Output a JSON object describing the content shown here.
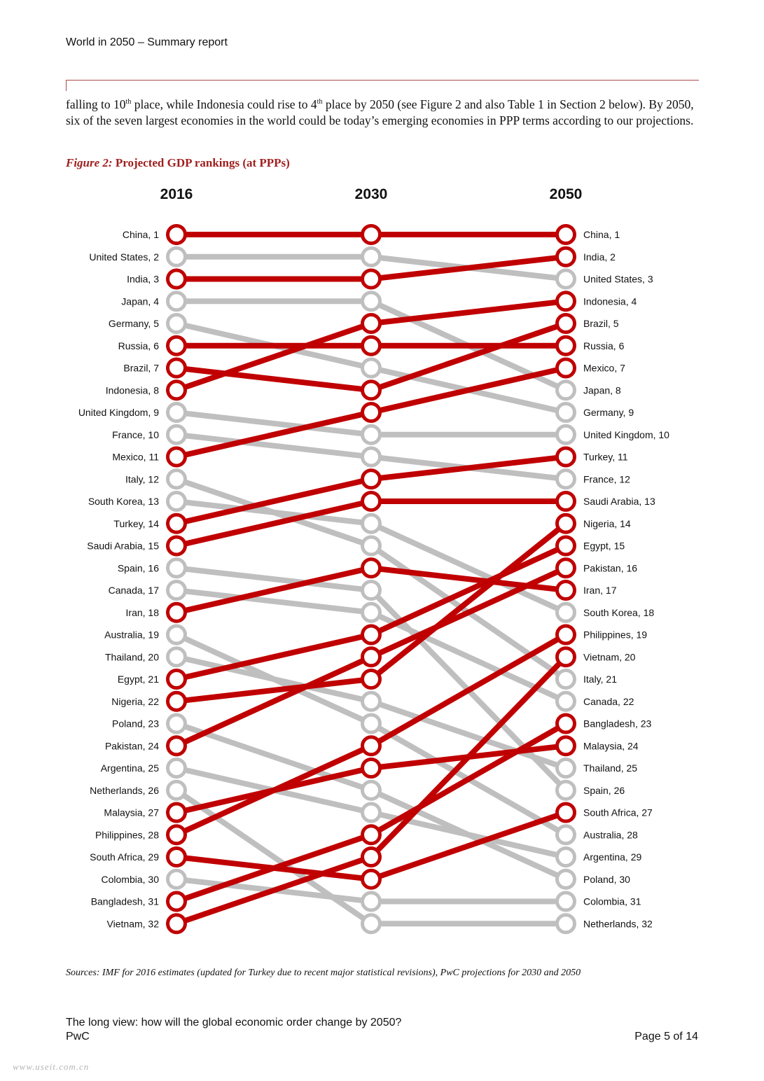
{
  "header": {
    "title": "World in 2050 – Summary report"
  },
  "body": {
    "part1": "falling to 10",
    "sup1": "th",
    "part2": " place, while Indonesia could rise to 4",
    "sup2": "th",
    "part3": " place by 2050 (see Figure 2 and also Table 1 in Section 2 below). By 2050, six of the seven largest economies in the world could be today’s emerging economies in PPP terms according to our projections."
  },
  "figure": {
    "label": "Figure 2:",
    "title": " Projected GDP rankings (at PPPs)"
  },
  "colors": {
    "highlight": "#c00000",
    "neutral": "#bfbfbf"
  },
  "chart_data": {
    "type": "slope",
    "title": "Projected GDP rankings (at PPPs)",
    "years": [
      "2016",
      "2030",
      "2050"
    ],
    "countries": [
      {
        "name": "China",
        "ranks": [
          1,
          1,
          1
        ],
        "highlight": true
      },
      {
        "name": "United States",
        "ranks": [
          2,
          2,
          3
        ],
        "highlight": false
      },
      {
        "name": "India",
        "ranks": [
          3,
          3,
          2
        ],
        "highlight": true
      },
      {
        "name": "Japan",
        "ranks": [
          4,
          4,
          8
        ],
        "highlight": false
      },
      {
        "name": "Germany",
        "ranks": [
          5,
          7,
          9
        ],
        "highlight": false
      },
      {
        "name": "Russia",
        "ranks": [
          6,
          6,
          6
        ],
        "highlight": true
      },
      {
        "name": "Brazil",
        "ranks": [
          7,
          8,
          5
        ],
        "highlight": true
      },
      {
        "name": "Indonesia",
        "ranks": [
          8,
          5,
          4
        ],
        "highlight": true
      },
      {
        "name": "United Kingdom",
        "ranks": [
          9,
          10,
          10
        ],
        "highlight": false
      },
      {
        "name": "France",
        "ranks": [
          10,
          11,
          12
        ],
        "highlight": false
      },
      {
        "name": "Mexico",
        "ranks": [
          11,
          9,
          7
        ],
        "highlight": true
      },
      {
        "name": "Italy",
        "ranks": [
          12,
          15,
          21
        ],
        "highlight": false
      },
      {
        "name": "South Korea",
        "ranks": [
          13,
          14,
          18
        ],
        "highlight": false
      },
      {
        "name": "Turkey",
        "ranks": [
          14,
          12,
          11
        ],
        "highlight": true
      },
      {
        "name": "Saudi Arabia",
        "ranks": [
          15,
          13,
          13
        ],
        "highlight": true
      },
      {
        "name": "Spain",
        "ranks": [
          16,
          17,
          26
        ],
        "highlight": false
      },
      {
        "name": "Canada",
        "ranks": [
          17,
          18,
          22
        ],
        "highlight": false
      },
      {
        "name": "Iran",
        "ranks": [
          18,
          16,
          17
        ],
        "highlight": true
      },
      {
        "name": "Australia",
        "ranks": [
          19,
          23,
          28
        ],
        "highlight": false
      },
      {
        "name": "Thailand",
        "ranks": [
          20,
          22,
          25
        ],
        "highlight": false
      },
      {
        "name": "Egypt",
        "ranks": [
          21,
          19,
          15
        ],
        "highlight": true
      },
      {
        "name": "Nigeria",
        "ranks": [
          22,
          21,
          14
        ],
        "highlight": true
      },
      {
        "name": "Poland",
        "ranks": [
          23,
          26,
          30
        ],
        "highlight": false
      },
      {
        "name": "Pakistan",
        "ranks": [
          24,
          20,
          16
        ],
        "highlight": true
      },
      {
        "name": "Argentina",
        "ranks": [
          25,
          27,
          29
        ],
        "highlight": false
      },
      {
        "name": "Netherlands",
        "ranks": [
          26,
          32,
          32
        ],
        "highlight": false
      },
      {
        "name": "Malaysia",
        "ranks": [
          27,
          25,
          24
        ],
        "highlight": true
      },
      {
        "name": "Philippines",
        "ranks": [
          28,
          24,
          19
        ],
        "highlight": true
      },
      {
        "name": "South Africa",
        "ranks": [
          29,
          30,
          27
        ],
        "highlight": true
      },
      {
        "name": "Colombia",
        "ranks": [
          30,
          31,
          31
        ],
        "highlight": false
      },
      {
        "name": "Bangladesh",
        "ranks": [
          31,
          28,
          23
        ],
        "highlight": true
      },
      {
        "name": "Vietnam",
        "ranks": [
          32,
          29,
          20
        ],
        "highlight": true
      }
    ]
  },
  "source": "Sources: IMF for 2016 estimates (updated for Turkey due to recent major statistical revisions), PwC projections for 2030 and 2050",
  "footer": {
    "line1": "The long view: how will the global economic order change by 2050?",
    "line2": "PwC",
    "page": "Page 5 of 14"
  },
  "watermark": "www.useit.com.cn"
}
